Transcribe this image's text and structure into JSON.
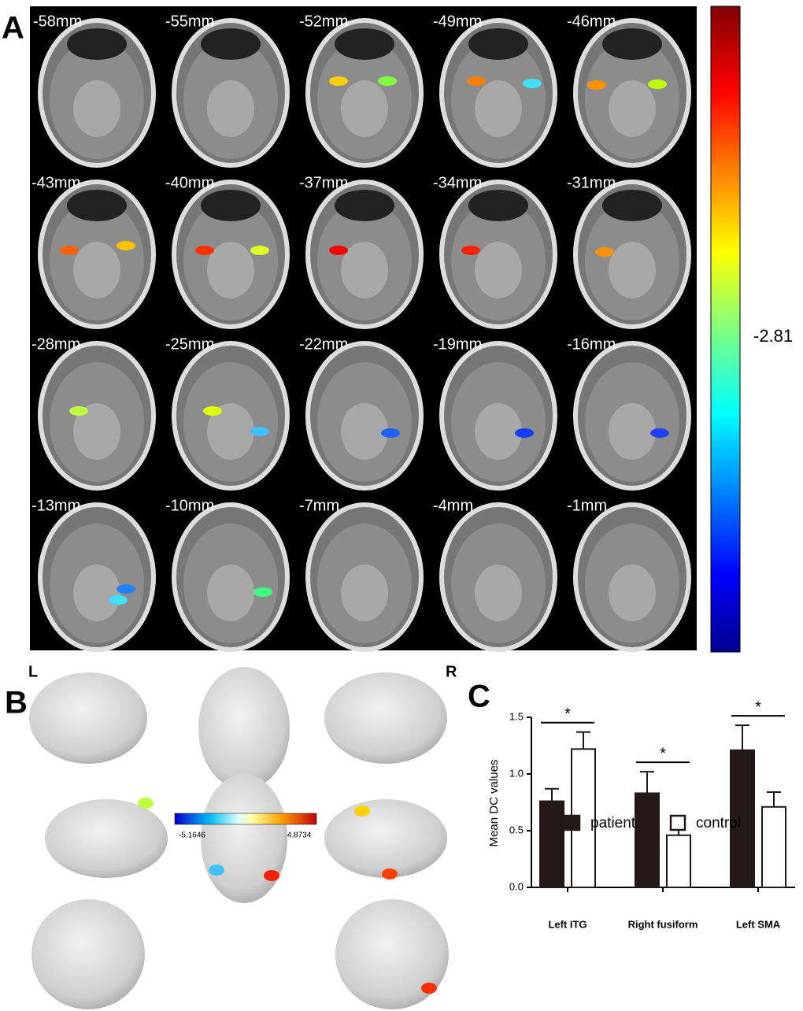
{
  "panel_labels": [
    "A",
    "B",
    "C"
  ],
  "slices": [
    "-58mm",
    "-55mm",
    "-52mm",
    "-49mm",
    "-46mm",
    "-43mm",
    "-40mm",
    "-37mm",
    "-34mm",
    "-31mm",
    "-28mm",
    "-25mm",
    "-22mm",
    "-19mm",
    "-16mm",
    "-13mm",
    "-10mm",
    "-7mm",
    "-4mm",
    "-1mm"
  ],
  "colorbar_a": {
    "label": -2.81
  },
  "panel_b": {
    "side_labels": [
      "L",
      "R"
    ],
    "colorbar": {
      "min": -5.1646,
      "max": 4.8734
    }
  },
  "chart_data": {
    "type": "bar",
    "y_label": "Mean DC values",
    "categories": [
      "Left ITG",
      "Right fusiform",
      "Left SMA"
    ],
    "series": [
      {
        "name": "patient",
        "color": "#231815",
        "values": [
          0.76,
          0.83,
          1.21
        ],
        "errors": [
          0.11,
          0.19,
          0.22
        ]
      },
      {
        "name": "control",
        "color": "#ffffff",
        "values": [
          1.22,
          0.46,
          0.71
        ],
        "errors": [
          0.15,
          0.1,
          0.13
        ]
      }
    ],
    "significance": [
      "*",
      "*",
      "*"
    ],
    "ylim": [
      0,
      1.5
    ],
    "yticks": [
      {
        "value": 0,
        "label": "0.0"
      },
      {
        "value": 0.5,
        "label": "0.5"
      },
      {
        "value": 1,
        "label": "1.0"
      },
      {
        "value": 1.5,
        "label": "1.5"
      }
    ],
    "legend": "bottom"
  }
}
